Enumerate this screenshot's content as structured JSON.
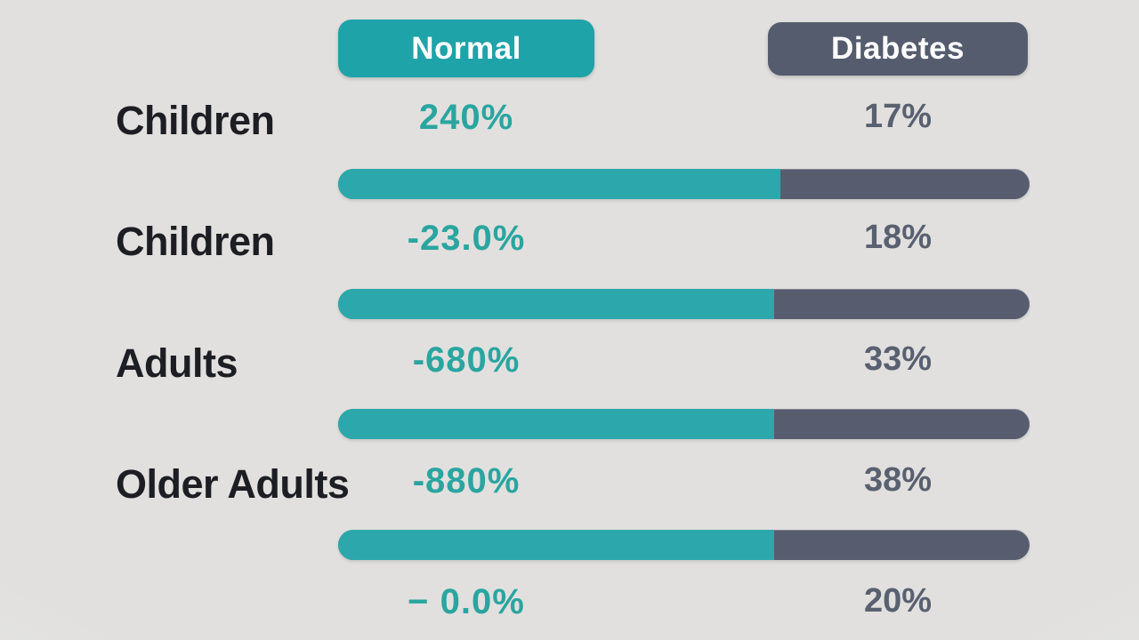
{
  "header": {
    "normal_label": "Normal",
    "diabetes_label": "Diabetes"
  },
  "colors": {
    "teal": "#2ca8ac",
    "dark_slate": "#575d6e",
    "teal_text": "#2aa5a0",
    "dark_text": "#596070",
    "label_text": "#1c1e23",
    "background": "#e2e1df"
  },
  "rows": [
    {
      "label": "Children",
      "normal_value": "240%",
      "diabetes_value": "17%",
      "bar_teal_width": "64%"
    },
    {
      "label": "Children",
      "normal_value": "-23.0%",
      "diabetes_value": "18%",
      "bar_teal_width": "63%"
    },
    {
      "label": "Adults",
      "normal_value": "-680%",
      "diabetes_value": "33%",
      "bar_teal_width": "63%"
    },
    {
      "label": "Older Adults",
      "normal_value": "-880%",
      "diabetes_value": "38%",
      "bar_teal_width": "63%"
    },
    {
      "label": "",
      "normal_value": "− 0.0%",
      "diabetes_value": "20%",
      "bar_teal_width": ""
    }
  ],
  "chart_data": {
    "type": "bar",
    "title": "",
    "categories": [
      "Children",
      "Children",
      "Adults",
      "Older Adults",
      ""
    ],
    "series": [
      {
        "name": "Normal",
        "color": "#2ca8ac",
        "value_labels": [
          "240%",
          "-23.0%",
          "-680%",
          "-880%",
          "− 0.0%"
        ],
        "bar_fraction_of_row": [
          0.64,
          0.63,
          0.63,
          0.63,
          null
        ]
      },
      {
        "name": "Diabetes",
        "color": "#575d6e",
        "value_labels": [
          "17%",
          "18%",
          "33%",
          "38%",
          "20%"
        ],
        "bar_fraction_of_row": [
          0.36,
          0.37,
          0.37,
          0.37,
          null
        ]
      }
    ],
    "legend_position": "top",
    "grid": false,
    "layout": "horizontal stacked comparison bars, one per category row"
  }
}
